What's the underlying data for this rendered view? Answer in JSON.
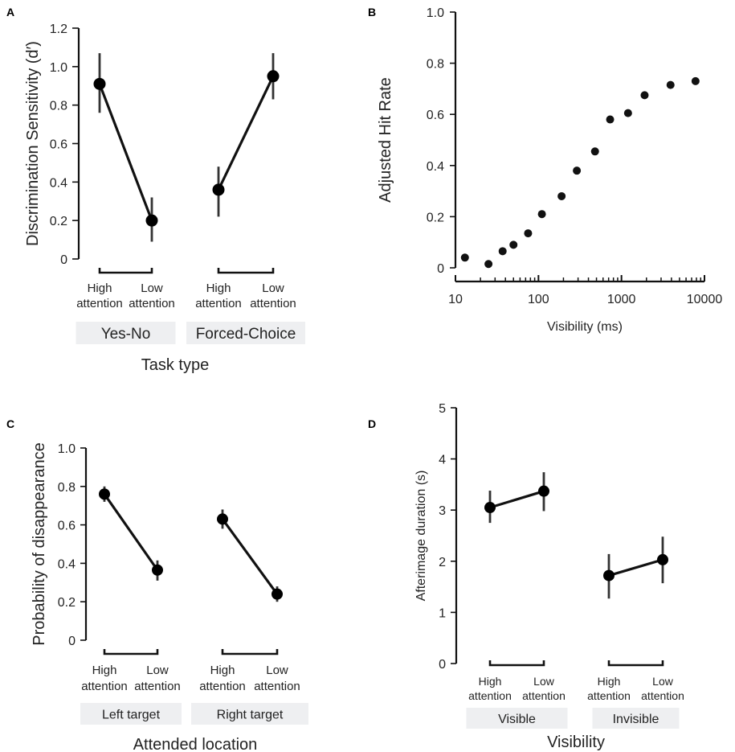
{
  "chart_data": [
    {
      "panel": "A",
      "type": "line",
      "ylabel": "Discrimination Sensitivity (d′)",
      "xlabel": "Task type",
      "ylim": [
        0,
        1.2
      ],
      "yticks": [
        "0",
        "0.2",
        "0.4",
        "0.6",
        "0.8",
        "1.0",
        "1.2"
      ],
      "groups": [
        {
          "label": "Yes-No",
          "conditions": [
            "High attention",
            "Low attention"
          ],
          "values": [
            0.91,
            0.2
          ],
          "err_low": [
            0.76,
            0.09
          ],
          "err_high": [
            1.07,
            0.32
          ]
        },
        {
          "label": "Forced-Choice",
          "conditions": [
            "High attention",
            "Low attention"
          ],
          "values": [
            0.36,
            0.95
          ],
          "err_low": [
            0.22,
            0.83
          ],
          "err_high": [
            0.48,
            1.07
          ]
        }
      ]
    },
    {
      "panel": "B",
      "type": "scatter",
      "ylabel": "Adjusted Hit Rate",
      "xlabel": "Visibility (ms)",
      "xscale": "log",
      "xlim": [
        10,
        10000
      ],
      "ylim": [
        0,
        1.0
      ],
      "xticks": [
        "10",
        "100",
        "1000",
        "10000"
      ],
      "yticks": [
        "0",
        "0.2",
        "0.4",
        "0.6",
        "0.8",
        "1.0"
      ],
      "x": [
        13,
        25,
        37,
        50,
        75,
        110,
        190,
        290,
        480,
        730,
        1200,
        1900,
        3900,
        7800
      ],
      "y": [
        0.04,
        0.015,
        0.065,
        0.09,
        0.135,
        0.21,
        0.28,
        0.38,
        0.455,
        0.58,
        0.605,
        0.675,
        0.715,
        0.73
      ]
    },
    {
      "panel": "C",
      "type": "line",
      "ylabel": "Probability of disappearance",
      "xlabel": "Attended location",
      "ylim": [
        0,
        1.0
      ],
      "yticks": [
        "0",
        "0.2",
        "0.4",
        "0.6",
        "0.8",
        "1.0"
      ],
      "groups": [
        {
          "label": "Left target",
          "conditions": [
            "High attention",
            "Low attention"
          ],
          "values": [
            0.76,
            0.365
          ],
          "err_low": [
            0.72,
            0.31
          ],
          "err_high": [
            0.8,
            0.415
          ]
        },
        {
          "label": "Right target",
          "conditions": [
            "High attention",
            "Low attention"
          ],
          "values": [
            0.63,
            0.24
          ],
          "err_low": [
            0.58,
            0.2
          ],
          "err_high": [
            0.68,
            0.28
          ]
        }
      ]
    },
    {
      "panel": "D",
      "type": "line",
      "ylabel": "Afterimage duration (s)",
      "xlabel": "Visibility",
      "ylim": [
        0,
        5
      ],
      "yticks": [
        "0",
        "1",
        "2",
        "3",
        "4",
        "5"
      ],
      "groups": [
        {
          "label": "Visible",
          "conditions": [
            "High attention",
            "Low attention"
          ],
          "values": [
            3.05,
            3.37
          ],
          "err_low": [
            2.75,
            2.98
          ],
          "err_high": [
            3.38,
            3.74
          ]
        },
        {
          "label": "Invisible",
          "conditions": [
            "High attention",
            "Low attention"
          ],
          "values": [
            1.72,
            2.03
          ],
          "err_low": [
            1.27,
            1.57
          ],
          "err_high": [
            2.14,
            2.48
          ]
        }
      ]
    }
  ]
}
